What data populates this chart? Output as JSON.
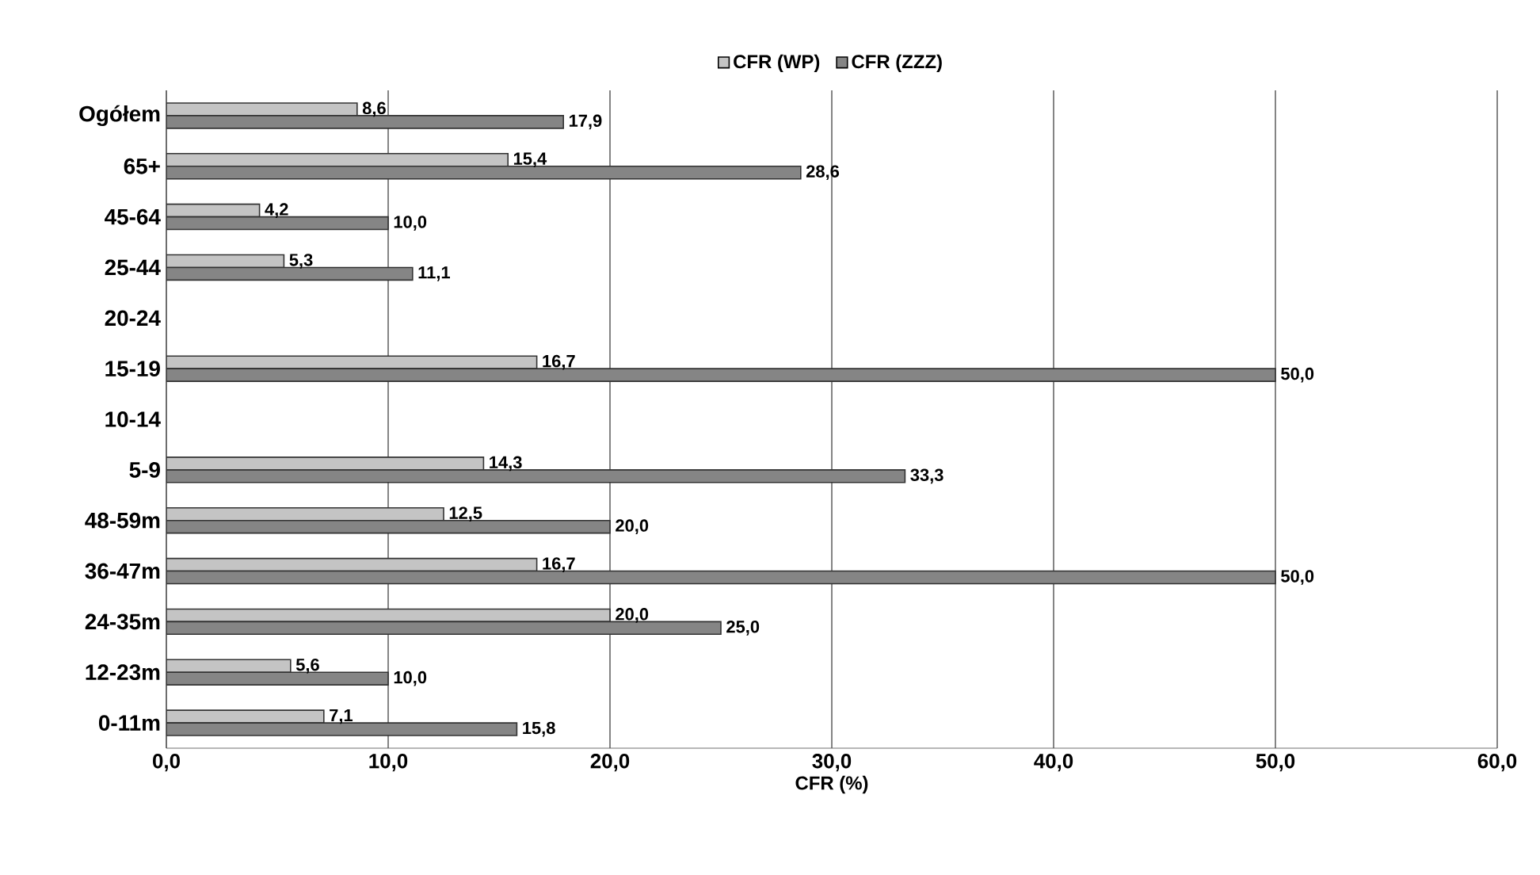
{
  "chart_data": {
    "type": "bar",
    "orientation": "horizontal",
    "xlabel": "CFR (%)",
    "categories": [
      "Ogółem",
      "65+",
      "45-64",
      "25-44",
      "20-24",
      "15-19",
      "10-14",
      "5-9",
      "48-59m",
      "36-47m",
      "24-35m",
      "12-23m",
      "0-11m"
    ],
    "series": [
      {
        "name": "CFR (WP)",
        "color": "#c4c4c4",
        "values": [
          8.6,
          15.4,
          4.2,
          5.3,
          null,
          16.7,
          null,
          14.3,
          12.5,
          16.7,
          20.0,
          5.6,
          7.1
        ],
        "value_labels": [
          "8,6",
          "15,4",
          "4,2",
          "5,3",
          null,
          "16,7",
          null,
          "14,3",
          "12,5",
          "16,7",
          "20,0",
          "5,6",
          "7,1"
        ]
      },
      {
        "name": "CFR (ZZZ)",
        "color": "#858585",
        "values": [
          17.9,
          28.6,
          10.0,
          11.1,
          null,
          50.0,
          null,
          33.3,
          20.0,
          50.0,
          25.0,
          10.0,
          15.8
        ],
        "value_labels": [
          "17,9",
          "28,6",
          "10,0",
          "11,1",
          null,
          "50,0",
          null,
          "33,3",
          "20,0",
          "50,0",
          "25,0",
          "10,0",
          "15,8"
        ]
      }
    ],
    "xlim": [
      0,
      60
    ],
    "xticks": [
      {
        "value": 0,
        "label": "0,0"
      },
      {
        "value": 10,
        "label": "10,0"
      },
      {
        "value": 20,
        "label": "20,0"
      },
      {
        "value": 30,
        "label": "30,0"
      },
      {
        "value": 40,
        "label": "40,0"
      },
      {
        "value": 50,
        "label": "50,0"
      },
      {
        "value": 60,
        "label": "60,0"
      }
    ],
    "grid": "x",
    "legend": "top"
  }
}
